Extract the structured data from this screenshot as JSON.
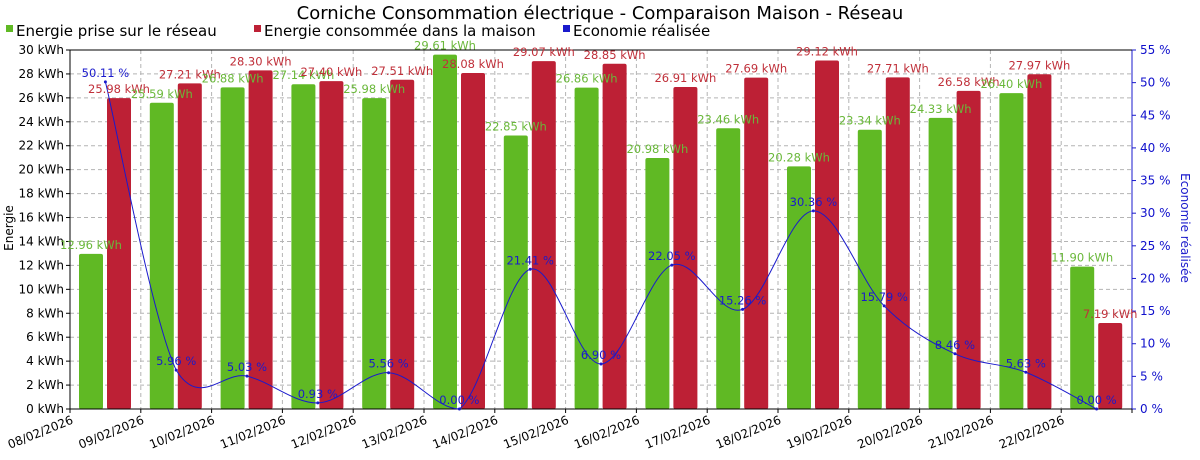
{
  "chart_data": {
    "type": "bar",
    "title": "Corniche Consommation électrique - Comparaison Maison - Réseau",
    "ylabel": "Energie",
    "y2label": "Economie réalisée",
    "ylim": [
      0,
      30
    ],
    "y2lim": [
      0,
      55
    ],
    "grid": true,
    "legend_position": "top-left",
    "categories": [
      "08/02/2026",
      "09/02/2026",
      "10/02/2026",
      "11/02/2026",
      "12/02/2026",
      "13/02/2026",
      "14/02/2026",
      "15/02/2026",
      "16/02/2026",
      "17/02/2026",
      "18/02/2026",
      "19/02/2026",
      "20/02/2026",
      "21/02/2026",
      "22/02/2026"
    ],
    "series": [
      {
        "name": "Energie prise sur le réseau",
        "kind": "bar",
        "axis": "left",
        "color": "#60b924",
        "values": [
          12.96,
          25.59,
          26.88,
          27.14,
          25.98,
          29.61,
          22.85,
          26.86,
          20.98,
          23.46,
          20.28,
          23.34,
          24.33,
          26.4,
          11.9
        ],
        "labels": [
          "12.96 kWh",
          "25.59 kWh",
          "26.88 kWh",
          "27.14 kWh",
          "25.98 kWh",
          "29.61 kWh",
          "22.85 kWh",
          "26.86 kWh",
          "20.98 kWh",
          "23.46 kWh",
          "20.28 kWh",
          "23.34 kWh",
          "24.33 kWh",
          "26.40 kWh",
          "11.90 kWh"
        ]
      },
      {
        "name": "Energie consommée dans la maison",
        "kind": "bar",
        "axis": "left",
        "color": "#bd2035",
        "values": [
          25.98,
          27.21,
          28.3,
          27.4,
          27.51,
          28.08,
          29.07,
          28.85,
          26.91,
          27.69,
          29.12,
          27.71,
          26.58,
          27.97,
          7.19
        ],
        "labels": [
          "25.98 kWh",
          "27.21 kWh",
          "28.30 kWh",
          "27.40 kWh",
          "27.51 kWh",
          "28.08 kWh",
          "29.07 kWh",
          "28.85 kWh",
          "26.91 kWh",
          "27.69 kWh",
          "29.12 kWh",
          "27.71 kWh",
          "26.58 kWh",
          "27.97 kWh",
          "7.19 kWh"
        ]
      },
      {
        "name": "Economie réalisée",
        "kind": "line",
        "axis": "right",
        "color": "#1a1acc",
        "values": [
          50.11,
          5.96,
          5.03,
          0.93,
          5.56,
          0.0,
          21.41,
          6.9,
          22.05,
          15.26,
          30.36,
          15.79,
          8.46,
          5.63,
          0.0
        ],
        "labels": [
          "50.11 %",
          "5.96 %",
          "5.03 %",
          "0.93 %",
          "5.56 %",
          "0.00 %",
          "21.41 %",
          "6.90 %",
          "22.05 %",
          "15.26 %",
          "30.36 %",
          "15.79 %",
          "8.46 %",
          "5.63 %",
          "0.00 %"
        ]
      }
    ],
    "left_ticks": [
      "0 kWh",
      "2 kWh",
      "4 kWh",
      "6 kWh",
      "8 kWh",
      "10 kWh",
      "12 kWh",
      "14 kWh",
      "16 kWh",
      "18 kWh",
      "20 kWh",
      "22 kWh",
      "24 kWh",
      "26 kWh",
      "28 kWh",
      "30 kWh"
    ],
    "left_tick_values": [
      0,
      2,
      4,
      6,
      8,
      10,
      12,
      14,
      16,
      18,
      20,
      22,
      24,
      26,
      28,
      30
    ],
    "right_ticks": [
      "0 %",
      "5 %",
      "10 %",
      "15 %",
      "20 %",
      "25 %",
      "30 %",
      "35 %",
      "40 %",
      "45 %",
      "50 %",
      "55 %"
    ],
    "right_tick_values": [
      0,
      5,
      10,
      15,
      20,
      25,
      30,
      35,
      40,
      45,
      50,
      55
    ]
  },
  "colors": {
    "grid": "#b4b4b4",
    "axis_left": "#000000",
    "axis_right": "#1a1acc",
    "green": "#60b924",
    "red": "#bd2035",
    "blue": "#1a1acc"
  }
}
